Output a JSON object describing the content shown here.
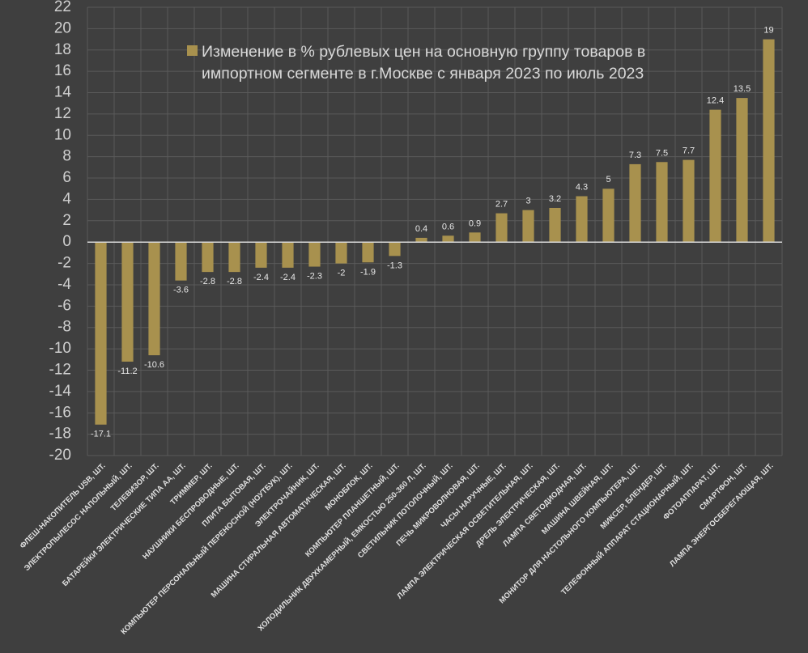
{
  "chart_data": {
    "type": "bar",
    "title": "",
    "xlabel": "",
    "ylabel": "",
    "ylim": [
      -20,
      22
    ],
    "yticks": [
      22,
      20,
      18,
      16,
      14,
      12,
      10,
      8,
      6,
      4,
      2,
      0,
      -2,
      -4,
      -6,
      -8,
      -10,
      -12,
      -14,
      -16,
      -18,
      -20
    ],
    "grid": true,
    "legend": {
      "position": "top-center",
      "lines": [
        "Изменение в % рублевых цен на основную группу товаров в",
        "импортном сегменте в г.Москве с января 2023 по июль 2023"
      ]
    },
    "bar_color": "#a8914e",
    "categories": [
      "ФЛЕШ-НАКОПИТЕЛЬ USB, ШТ.",
      "ЭЛЕКТРОПЫЛЕСОС НАПОЛЬНЫЙ, ШТ.",
      "ТЕЛЕВИЗОР, ШТ.",
      "БАТАРЕЙКИ ЭЛЕКТРИЧЕСКИЕ ТИПА АА, ШТ.",
      "ТРИММЕР, ШТ.",
      "НАУШНИКИ БЕСПРОВОДНЫЕ, ШТ.",
      "ПЛИТА БЫТОВАЯ, ШТ.",
      "КОМПЬЮТЕР ПЕРСОНАЛЬНЫЙ ПЕРЕНОСНОЙ (НОУТБУК), ШТ.",
      "ЭЛЕКТРОЧАЙНИК, ШТ.",
      "МАШИНА СТИРАЛЬНАЯ АВТОМАТИЧЕСКАЯ, ШТ.",
      "МОНОБЛОК, ШТ.",
      "КОМПЬЮТЕР ПЛАНШЕТНЫЙ, ШТ.",
      "ХОЛОДИЛЬНИК ДВУХКАМЕРНЫЙ, ЕМКОСТЬЮ 250-360 Л, ШТ.",
      "СВЕТИЛЬНИК ПОТОЛОЧНЫЙ, ШТ.",
      "ПЕЧЬ МИКРОВОЛНОВАЯ, ШТ.",
      "ЧАСЫ НАРУЧНЫЕ, ШТ.",
      "ЛАМПА ЭЛЕКТРИЧЕСКАЯ ОСВЕТИТЕЛЬНАЯ, ШТ.",
      "ДРЕЛЬ ЭЛЕКТРИЧЕСКАЯ, ШТ.",
      "ЛАМПА СВЕТОДИОДНАЯ, ШТ.",
      "МАШИНА ШВЕЙНАЯ, ШТ.",
      "МОНИТОР ДЛЯ НАСТОЛЬНОГО КОМПЬЮТЕРА, ШТ.",
      "МИКСЕР, БЛЕНДЕР, ШТ.",
      "ТЕЛЕФОННЫЙ АППАРАТ СТАЦИОНАРНЫЙ, ШТ.",
      "ФОТОАППАРАТ, ШТ.",
      "СМАРТФОН, ШТ.",
      "ЛАМПА ЭНЕРГОСБЕРЕГАЮЩАЯ, ШТ."
    ],
    "values": [
      -17.1,
      -11.2,
      -10.6,
      -3.6,
      -2.8,
      -2.8,
      -2.4,
      -2.4,
      -2.3,
      -2,
      -1.9,
      -1.3,
      0.4,
      0.6,
      0.9,
      2.7,
      3,
      3.2,
      4.3,
      5,
      7.3,
      7.5,
      7.7,
      12.4,
      13.5,
      19
    ],
    "data_labels": [
      "-17.1",
      "-11.2",
      "-10.6",
      "-3.6",
      "-2.8",
      "-2.8",
      "-2.4",
      "-2.4",
      "-2.3",
      "-2",
      "-1.9",
      "-1.3",
      "0.4",
      "0.6",
      "0.9",
      "2.7",
      "3",
      "3.2",
      "4.3",
      "5",
      "7.3",
      "7.5",
      "7.7",
      "12.4",
      "13.5",
      "19"
    ]
  }
}
